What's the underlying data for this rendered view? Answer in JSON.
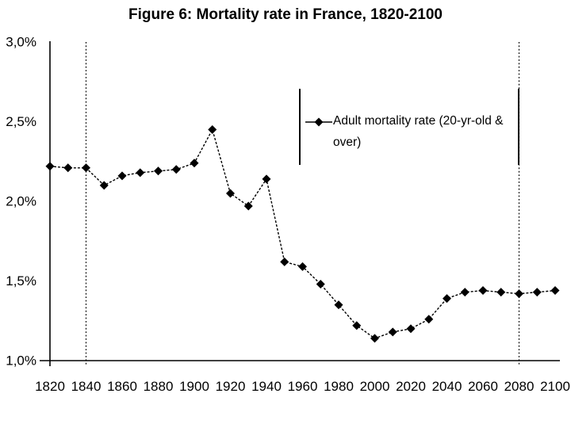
{
  "title": "Figure 6: Mortality rate in France, 1820-2100",
  "legend": {
    "label": "Adult mortality rate (20-yr-old & over)",
    "marker_icon": "diamond-line-marker-icon"
  },
  "colors": {
    "series": "#000000",
    "background": "#ffffff",
    "text": "#000000"
  },
  "chart_data": {
    "type": "line",
    "title": "Figure 6: Mortality rate in France, 1820-2100",
    "series_name": "Adult mortality rate (20-yr-old & over)",
    "x": [
      1820,
      1830,
      1840,
      1850,
      1860,
      1870,
      1880,
      1890,
      1900,
      1910,
      1920,
      1930,
      1940,
      1950,
      1960,
      1970,
      1980,
      1990,
      2000,
      2010,
      2020,
      2030,
      2040,
      2050,
      2060,
      2070,
      2080,
      2090,
      2100
    ],
    "values": [
      2.22,
      2.21,
      2.21,
      2.1,
      2.16,
      2.18,
      2.19,
      2.2,
      2.24,
      2.45,
      2.05,
      1.97,
      2.14,
      1.62,
      1.59,
      1.48,
      1.35,
      1.22,
      1.14,
      1.18,
      1.2,
      1.26,
      1.39,
      1.43,
      1.44,
      1.43,
      1.42,
      1.43,
      1.44
    ],
    "unit": "%",
    "xlim": [
      1820,
      2100
    ],
    "ylim": [
      1.0,
      3.0
    ],
    "xtick_values": [
      1820,
      1840,
      1860,
      1880,
      1900,
      1920,
      1940,
      1960,
      1980,
      2000,
      2020,
      2040,
      2060,
      2080,
      2100
    ],
    "ytick_values": [
      1.0,
      1.5,
      2.0,
      2.5,
      3.0
    ],
    "ytick_labels": [
      "1,0%",
      "1,5%",
      "2,0%",
      "2,5%",
      "3,0%"
    ],
    "vertical_dotted_lines_x": [
      1840,
      2080
    ],
    "marker": "diamond",
    "line_style": "dashed",
    "grid": "off",
    "legend_position": "middle-right"
  }
}
